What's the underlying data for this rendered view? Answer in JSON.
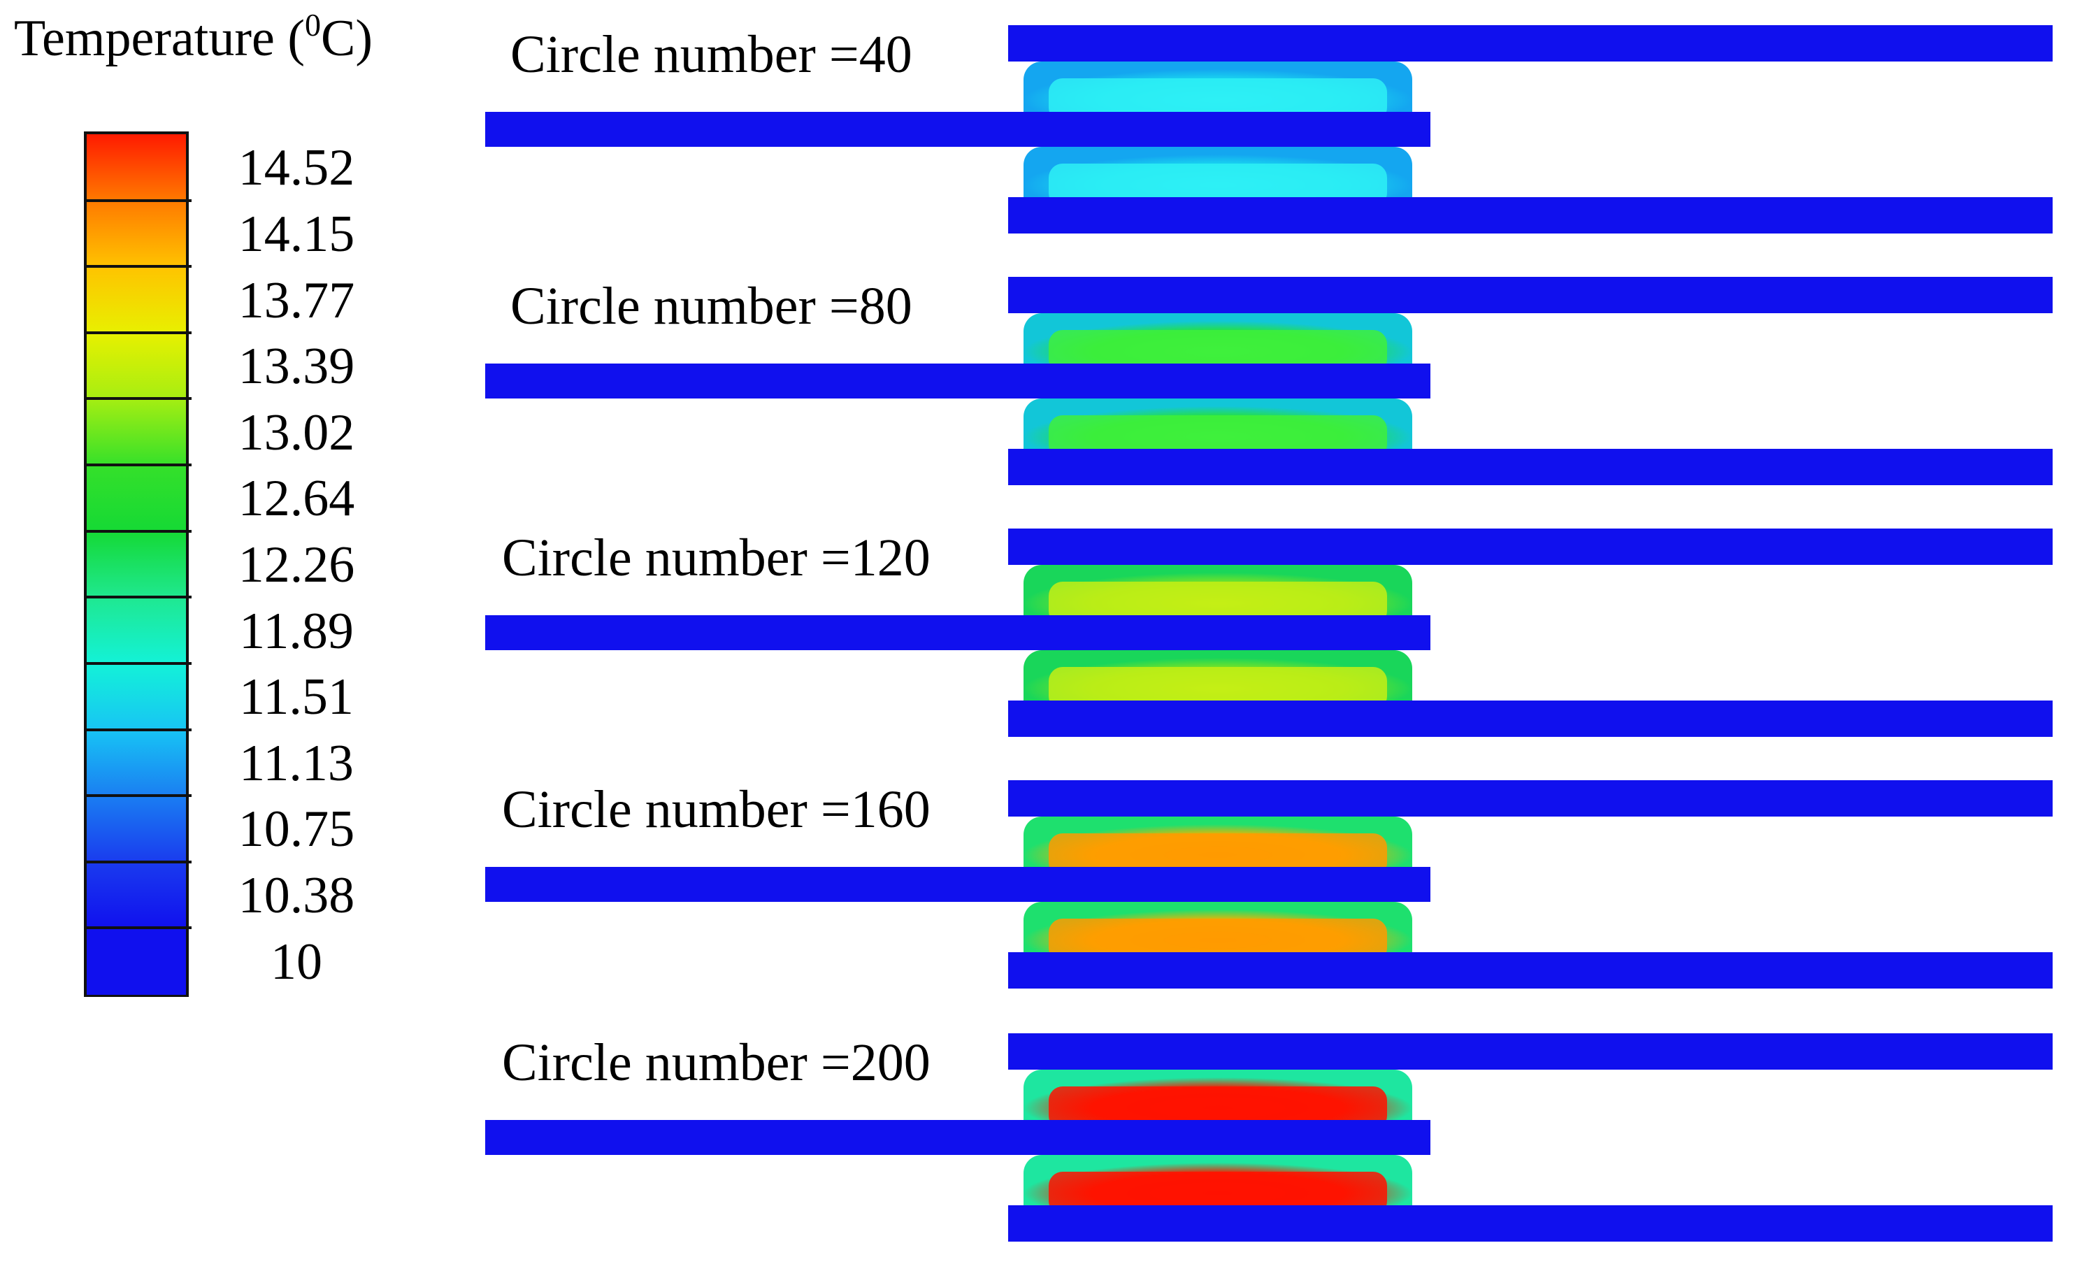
{
  "colorbar": {
    "title": "Temperature (",
    "title_sup": "0",
    "title_unit": "C)",
    "tick_labels": [
      "14.52",
      "14.15",
      "13.77",
      "13.39",
      "13.02",
      "12.64",
      "12.26",
      "11.89",
      "11.51",
      "11.13",
      "10.75",
      "10.38",
      "10"
    ],
    "band_colors": [
      "#ff1a00",
      "#ff7a00",
      "#ffc300",
      "#e8f000",
      "#a6ee12",
      "#35e02a",
      "#15d935",
      "#1fe890",
      "#13f2d8",
      "#18c4f4",
      "#1a7ef2",
      "#1a3bee",
      "#1010ee"
    ]
  },
  "colors": {
    "tube": "#1010ee",
    "background": "#ffffff"
  },
  "panels": [
    {
      "label": "Circle number =40",
      "inner_color": "#19d8f0",
      "edge_color": "#14a6f0",
      "hot_color": "#2ef0f5"
    },
    {
      "label": "Circle number =80",
      "inner_color": "#26e23a",
      "edge_color": "#12c6d8",
      "hot_color": "#3ff03c"
    },
    {
      "label": "Circle number =120",
      "inner_color": "#7ee421",
      "edge_color": "#19d65a",
      "hot_color": "#c4ef15"
    },
    {
      "label": "Circle number =160",
      "inner_color": "#f2b200",
      "edge_color": "#1ee06e",
      "hot_color": "#ff9a00"
    },
    {
      "label": "Circle number =200",
      "inner_color": "#f51e00",
      "edge_color": "#1ee6a0",
      "hot_color": "#ff1200"
    }
  ]
}
